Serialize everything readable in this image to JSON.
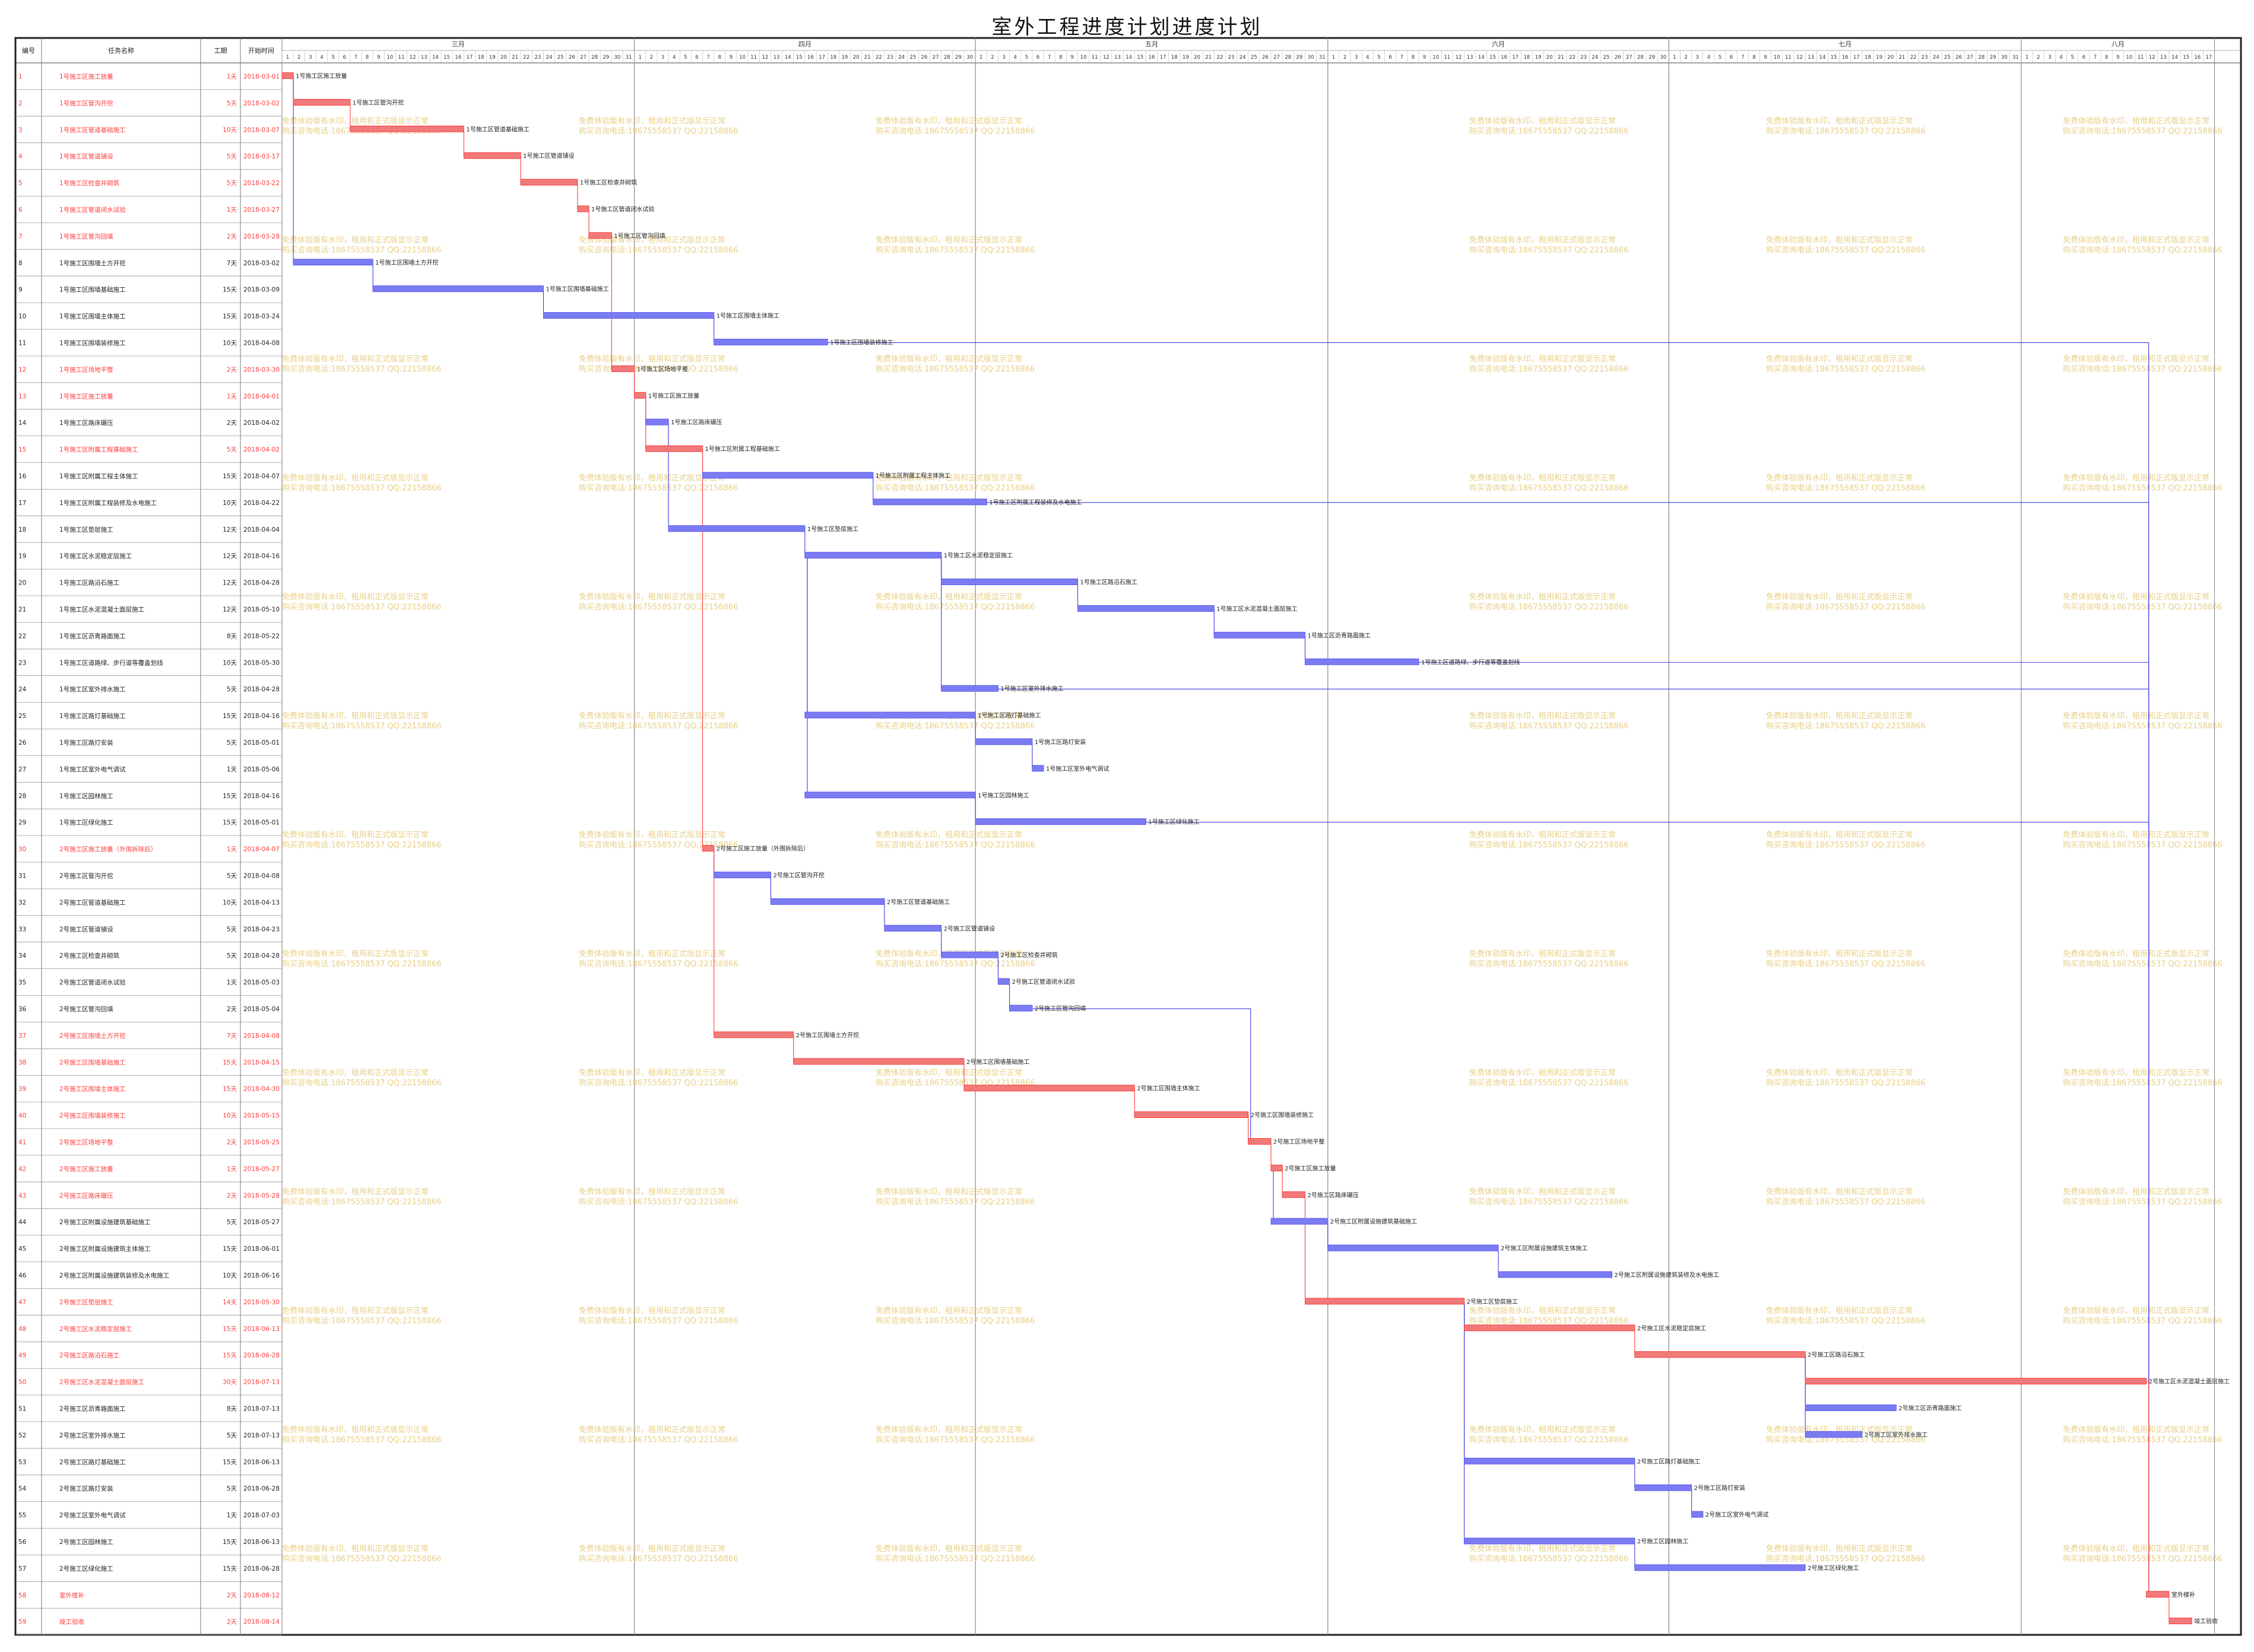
{
  "title": "室外工程进度计划进度计划",
  "columns": {
    "id": "编号",
    "name": "任务名称",
    "duration": "工期",
    "start": "开始时间"
  },
  "months": [
    "三月",
    "四月",
    "五月",
    "六月",
    "七月",
    "八月"
  ],
  "watermark": {
    "line1": "免费体验版有水印，租用和正式版显示正常",
    "line2": "购买咨询电话:18675558537 QQ:22158866"
  },
  "colors": {
    "critical": "#ff3b3b",
    "normal": "#5a5af0",
    "critical_bar": "#f07a7a",
    "normal_bar": "#7c7cf2",
    "link": "#3b3be0",
    "watermark": "#e8cf86",
    "grid": "#d6d6d6"
  },
  "chart_data": {
    "type": "gantt",
    "timeline": {
      "start": "2018-03-01",
      "end": "2018-08-17"
    },
    "tasks": [
      {
        "id": "1",
        "name": "1号施工区施工放量",
        "duration": "1天",
        "start": "2018-03-01",
        "days": 1,
        "critical": true
      },
      {
        "id": "2",
        "name": "1号施工区管沟开挖",
        "duration": "5天",
        "start": "2018-03-02",
        "days": 5,
        "critical": true
      },
      {
        "id": "3",
        "name": "1号施工区管道基础施工",
        "duration": "10天",
        "start": "2018-03-07",
        "days": 10,
        "critical": true
      },
      {
        "id": "4",
        "name": "1号施工区管道铺设",
        "duration": "5天",
        "start": "2018-03-17",
        "days": 5,
        "critical": true
      },
      {
        "id": "5",
        "name": "1号施工区检查井砌筑",
        "duration": "5天",
        "start": "2018-03-22",
        "days": 5,
        "critical": true
      },
      {
        "id": "6",
        "name": "1号施工区管道闭水试验",
        "duration": "1天",
        "start": "2018-03-27",
        "days": 1,
        "critical": true
      },
      {
        "id": "7",
        "name": "1号施工区管沟回填",
        "duration": "2天",
        "start": "2018-03-28",
        "days": 2,
        "critical": true
      },
      {
        "id": "8",
        "name": "1号施工区围墙土方开挖",
        "duration": "7天",
        "start": "2018-03-02",
        "days": 7,
        "critical": false
      },
      {
        "id": "9",
        "name": "1号施工区围墙基础施工",
        "duration": "15天",
        "start": "2018-03-09",
        "days": 15,
        "critical": false
      },
      {
        "id": "10",
        "name": "1号施工区围墙主体施工",
        "duration": "15天",
        "start": "2018-03-24",
        "days": 15,
        "critical": false
      },
      {
        "id": "11",
        "name": "1号施工区围墙装修施工",
        "duration": "10天",
        "start": "2018-04-08",
        "days": 10,
        "critical": false
      },
      {
        "id": "12",
        "name": "1号施工区场地平整",
        "duration": "2天",
        "start": "2018-03-30",
        "days": 2,
        "critical": true
      },
      {
        "id": "13",
        "name": "1号施工区施工放量",
        "duration": "1天",
        "start": "2018-04-01",
        "days": 1,
        "critical": true
      },
      {
        "id": "14",
        "name": "1号施工区路床碾压",
        "duration": "2天",
        "start": "2018-04-02",
        "days": 2,
        "critical": false
      },
      {
        "id": "15",
        "name": "1号施工区附属工程基础施工",
        "duration": "5天",
        "start": "2018-04-02",
        "days": 5,
        "critical": true
      },
      {
        "id": "16",
        "name": "1号施工区附属工程主体施工",
        "duration": "15天",
        "start": "2018-04-07",
        "days": 15,
        "critical": false
      },
      {
        "id": "17",
        "name": "1号施工区附属工程装修及水电施工",
        "duration": "10天",
        "start": "2018-04-22",
        "days": 10,
        "critical": false
      },
      {
        "id": "18",
        "name": "1号施工区垫层施工",
        "duration": "12天",
        "start": "2018-04-04",
        "days": 12,
        "critical": false
      },
      {
        "id": "19",
        "name": "1号施工区水泥稳定层施工",
        "duration": "12天",
        "start": "2018-04-16",
        "days": 12,
        "critical": false
      },
      {
        "id": "20",
        "name": "1号施工区路沿石施工",
        "duration": "12天",
        "start": "2018-04-28",
        "days": 12,
        "critical": false
      },
      {
        "id": "21",
        "name": "1号施工区水泥混凝土面层施工",
        "duration": "12天",
        "start": "2018-05-10",
        "days": 12,
        "critical": false
      },
      {
        "id": "22",
        "name": "1号施工区沥青路面施工",
        "duration": "8天",
        "start": "2018-05-22",
        "days": 8,
        "critical": false
      },
      {
        "id": "23",
        "name": "1号施工区道路绿、步行道等覆盖划线",
        "duration": "10天",
        "start": "2018-05-30",
        "days": 10,
        "critical": false
      },
      {
        "id": "24",
        "name": "1号施工区室外排水施工",
        "duration": "5天",
        "start": "2018-04-28",
        "days": 5,
        "critical": false
      },
      {
        "id": "25",
        "name": "1号施工区路灯基础施工",
        "duration": "15天",
        "start": "2018-04-16",
        "days": 15,
        "critical": false
      },
      {
        "id": "26",
        "name": "1号施工区路灯安装",
        "duration": "5天",
        "start": "2018-05-01",
        "days": 5,
        "critical": false
      },
      {
        "id": "27",
        "name": "1号施工区室外电气调试",
        "duration": "1天",
        "start": "2018-05-06",
        "days": 1,
        "critical": false
      },
      {
        "id": "28",
        "name": "1号施工区园林施工",
        "duration": "15天",
        "start": "2018-04-16",
        "days": 15,
        "critical": false
      },
      {
        "id": "29",
        "name": "1号施工区绿化施工",
        "duration": "15天",
        "start": "2018-05-01",
        "days": 15,
        "critical": false
      },
      {
        "id": "30",
        "name": "2号施工区施工放量（外围拆除后）",
        "duration": "1天",
        "start": "2018-04-07",
        "days": 1,
        "critical": true
      },
      {
        "id": "31",
        "name": "2号施工区管沟开挖",
        "duration": "5天",
        "start": "2018-04-08",
        "days": 5,
        "critical": false
      },
      {
        "id": "32",
        "name": "2号施工区管道基础施工",
        "duration": "10天",
        "start": "2018-04-13",
        "days": 10,
        "critical": false
      },
      {
        "id": "33",
        "name": "2号施工区管道铺设",
        "duration": "5天",
        "start": "2018-04-23",
        "days": 5,
        "critical": false
      },
      {
        "id": "34",
        "name": "2号施工区检查井砌筑",
        "duration": "5天",
        "start": "2018-04-28",
        "days": 5,
        "critical": false
      },
      {
        "id": "35",
        "name": "2号施工区管道闭水试验",
        "duration": "1天",
        "start": "2018-05-03",
        "days": 1,
        "critical": false
      },
      {
        "id": "36",
        "name": "2号施工区管沟回填",
        "duration": "2天",
        "start": "2018-05-04",
        "days": 2,
        "critical": false
      },
      {
        "id": "37",
        "name": "2号施工区围墙土方开挖",
        "duration": "7天",
        "start": "2018-04-08",
        "days": 7,
        "critical": true
      },
      {
        "id": "38",
        "name": "2号施工区围墙基础施工",
        "duration": "15天",
        "start": "2018-04-15",
        "days": 15,
        "critical": true
      },
      {
        "id": "39",
        "name": "2号施工区围墙主体施工",
        "duration": "15天",
        "start": "2018-04-30",
        "days": 15,
        "critical": true
      },
      {
        "id": "40",
        "name": "2号施工区围墙装修施工",
        "duration": "10天",
        "start": "2018-05-15",
        "days": 10,
        "critical": true
      },
      {
        "id": "41",
        "name": "2号施工区场地平整",
        "duration": "2天",
        "start": "2018-05-25",
        "days": 2,
        "critical": true
      },
      {
        "id": "42",
        "name": "2号施工区施工放量",
        "duration": "1天",
        "start": "2018-05-27",
        "days": 1,
        "critical": true
      },
      {
        "id": "43",
        "name": "2号施工区路床碾压",
        "duration": "2天",
        "start": "2018-05-28",
        "days": 2,
        "critical": true
      },
      {
        "id": "44",
        "name": "2号施工区附属设施建筑基础施工",
        "duration": "5天",
        "start": "2018-05-27",
        "days": 5,
        "critical": false
      },
      {
        "id": "45",
        "name": "2号施工区附属设施建筑主体施工",
        "duration": "15天",
        "start": "2018-06-01",
        "days": 15,
        "critical": false
      },
      {
        "id": "46",
        "name": "2号施工区附属设施建筑装修及水电施工",
        "duration": "10天",
        "start": "2018-06-16",
        "days": 10,
        "critical": false
      },
      {
        "id": "47",
        "name": "2号施工区垫层施工",
        "duration": "14天",
        "start": "2018-05-30",
        "days": 14,
        "critical": true
      },
      {
        "id": "48",
        "name": "2号施工区水泥稳定层施工",
        "duration": "15天",
        "start": "2018-06-13",
        "days": 15,
        "critical": true
      },
      {
        "id": "49",
        "name": "2号施工区路沿石施工",
        "duration": "15天",
        "start": "2018-06-28",
        "days": 15,
        "critical": true
      },
      {
        "id": "50",
        "name": "2号施工区水泥混凝土面层施工",
        "duration": "30天",
        "start": "2018-07-13",
        "days": 30,
        "critical": true
      },
      {
        "id": "51",
        "name": "2号施工区沥青路面施工",
        "duration": "8天",
        "start": "2018-07-13",
        "days": 8,
        "critical": false
      },
      {
        "id": "52",
        "name": "2号施工区室外排水施工",
        "duration": "5天",
        "start": "2018-07-13",
        "days": 5,
        "critical": false
      },
      {
        "id": "53",
        "name": "2号施工区路灯基础施工",
        "duration": "15天",
        "start": "2018-06-13",
        "days": 15,
        "critical": false
      },
      {
        "id": "54",
        "name": "2号施工区路灯安装",
        "duration": "5天",
        "start": "2018-06-28",
        "days": 5,
        "critical": false
      },
      {
        "id": "55",
        "name": "2号施工区室外电气调试",
        "duration": "1天",
        "start": "2018-07-03",
        "days": 1,
        "critical": false
      },
      {
        "id": "56",
        "name": "2号施工区园林施工",
        "duration": "15天",
        "start": "2018-06-13",
        "days": 15,
        "critical": false
      },
      {
        "id": "57",
        "name": "2号施工区绿化施工",
        "duration": "15天",
        "start": "2018-06-28",
        "days": 15,
        "critical": false
      },
      {
        "id": "58",
        "name": "室外楼补",
        "duration": "2天",
        "start": "2018-08-12",
        "days": 2,
        "critical": true
      },
      {
        "id": "59",
        "name": "竣工验收",
        "duration": "2天",
        "start": "2018-08-14",
        "days": 2,
        "critical": true
      }
    ],
    "links": [
      [
        1,
        2
      ],
      [
        2,
        3
      ],
      [
        3,
        4
      ],
      [
        4,
        5
      ],
      [
        5,
        6
      ],
      [
        6,
        7
      ],
      [
        1,
        8
      ],
      [
        8,
        9
      ],
      [
        9,
        10
      ],
      [
        10,
        11
      ],
      [
        7,
        12
      ],
      [
        12,
        13
      ],
      [
        13,
        14
      ],
      [
        13,
        15
      ],
      [
        15,
        16
      ],
      [
        16,
        17
      ],
      [
        14,
        18
      ],
      [
        18,
        19
      ],
      [
        19,
        20
      ],
      [
        20,
        21
      ],
      [
        21,
        22
      ],
      [
        22,
        23
      ],
      [
        19,
        24
      ],
      [
        19,
        25
      ],
      [
        25,
        26
      ],
      [
        26,
        27
      ],
      [
        19,
        28
      ],
      [
        28,
        29
      ],
      [
        15,
        30
      ],
      [
        30,
        31
      ],
      [
        31,
        32
      ],
      [
        32,
        33
      ],
      [
        33,
        34
      ],
      [
        34,
        35
      ],
      [
        35,
        36
      ],
      [
        30,
        37
      ],
      [
        37,
        38
      ],
      [
        38,
        39
      ],
      [
        39,
        40
      ],
      [
        36,
        41
      ],
      [
        40,
        41
      ],
      [
        41,
        42
      ],
      [
        42,
        43
      ],
      [
        42,
        44
      ],
      [
        44,
        45
      ],
      [
        45,
        46
      ],
      [
        43,
        47
      ],
      [
        47,
        48
      ],
      [
        48,
        49
      ],
      [
        49,
        50
      ],
      [
        49,
        51
      ],
      [
        49,
        52
      ],
      [
        47,
        53
      ],
      [
        53,
        54
      ],
      [
        54,
        55
      ],
      [
        47,
        56
      ],
      [
        56,
        57
      ],
      [
        11,
        58
      ],
      [
        17,
        58
      ],
      [
        23,
        58
      ],
      [
        24,
        58
      ],
      [
        29,
        58
      ],
      [
        50,
        58
      ],
      [
        58,
        59
      ]
    ]
  }
}
